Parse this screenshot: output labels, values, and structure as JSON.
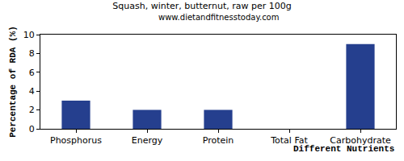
{
  "chart_data": {
    "type": "bar",
    "title": "Squash, winter, butternut, raw per 100g",
    "subtitle": "www.dietandfitnesstoday.com",
    "x_label": "Different Nutrients",
    "y_label": "Percentage of RDA (%)",
    "categories": [
      "Phosphorus",
      "Energy",
      "Protein",
      "Total Fat",
      "Carbohydrate"
    ],
    "values": [
      3,
      2,
      2,
      0,
      9
    ],
    "color": "#253f8e",
    "ylim": [
      0,
      10
    ],
    "yticks": [
      0,
      2,
      4,
      6,
      8,
      10
    ],
    "grid": false
  }
}
